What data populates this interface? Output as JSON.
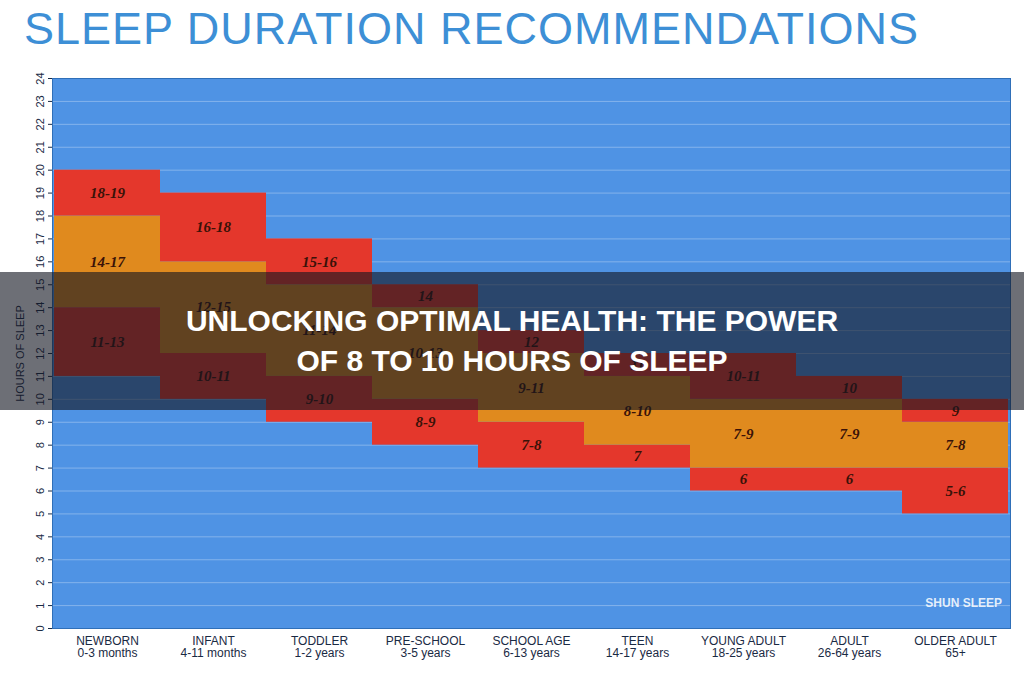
{
  "chart_data": {
    "type": "bar",
    "title": "SLEEP DURATION RECOMMENDATIONS",
    "banner": "UNLOCKING OPTIMAL HEALTH: THE POWER OF 8 TO 10 HOURS OF SLEEP",
    "watermark": "SHUN SLEEP",
    "y_label": "HOURS OF SLEEP",
    "categories": [
      "NEWBORN",
      "INFANT",
      "TODDLER",
      "PRE-SCHOOL",
      "SCHOOL AGE",
      "TEEN",
      "YOUNG ADULT",
      "ADULT",
      "OLDER ADULT"
    ],
    "age_ranges": [
      "0-3 months",
      "4-11 months",
      "1-2 years",
      "3-5 years",
      "6-13 years",
      "14-17 years",
      "18-25 years",
      "26-64 years",
      "65+"
    ],
    "series": [
      {
        "color": "#e4372c",
        "low": [
          11,
          10,
          9,
          8,
          7,
          7,
          6,
          6,
          5
        ],
        "high": [
          14,
          12,
          11,
          10,
          9,
          8,
          7,
          7,
          7
        ],
        "value_labels": [
          "11-13",
          "10-11",
          "9-10",
          "8-9",
          "7-8",
          "7",
          "6",
          "6",
          "5-6"
        ]
      },
      {
        "color": "#e08a1e",
        "low": [
          14,
          12,
          11,
          10,
          9,
          8,
          7,
          7,
          7
        ],
        "high": [
          18,
          16,
          15,
          14,
          12,
          11,
          10,
          10,
          9
        ],
        "value_labels": [
          "14-17",
          "12-15",
          "11-14",
          "10-13",
          "9-11",
          "8-10",
          "7-9",
          "7-9",
          "7-8"
        ]
      },
      {
        "color": "#e4372c",
        "low": [
          18,
          16,
          15,
          14,
          12,
          11,
          10,
          10,
          9
        ],
        "high": [
          20,
          19,
          17,
          15,
          13,
          12,
          12,
          11,
          10
        ],
        "value_labels": [
          "18-19",
          "16-18",
          "15-16",
          "14",
          "12",
          "11",
          "10-11",
          "10",
          "9"
        ]
      }
    ],
    "ylim": [
      0,
      24
    ],
    "yticks": [
      0,
      1,
      2,
      3,
      4,
      5,
      6,
      7,
      8,
      9,
      10,
      11,
      12,
      13,
      14,
      15,
      16,
      17,
      18,
      19,
      20,
      21,
      22,
      23,
      24
    ],
    "grid": true,
    "data_labels": true
  }
}
